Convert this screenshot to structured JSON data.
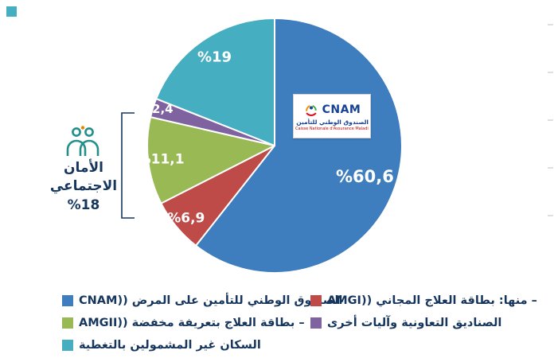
{
  "page": {
    "background": "#ffffff"
  },
  "chart_data": {
    "type": "pie",
    "title": "",
    "unit": "percent",
    "start_angle_deg": 90,
    "direction": "clockwise",
    "legend_position": "bottom",
    "slices": [
      {
        "name": "cnam",
        "label": "الصندوق الوطني للتأمين على المرض ((CNAM",
        "value": 60.6,
        "display": "%60,6",
        "color": "#3E7DBE",
        "label_r": 0.75,
        "label_size": 21
      },
      {
        "name": "amgi",
        "label": "– منها: بطاقة العلاج المجاني ((AMGI",
        "value": 6.9,
        "display": "%6,9",
        "color": "#BE4B48",
        "label_r": 0.9,
        "label_size": 17
      },
      {
        "name": "amgii",
        "label": "– بطاقة العلاج بتعريفة مخفضة ((AMGII",
        "value": 11.1,
        "display": "%11,1",
        "color": "#98B954",
        "label_r": 0.9,
        "label_size": 17
      },
      {
        "name": "mutuelles",
        "label": "الصناديق التعاونية وآليات أخرى",
        "value": 2.4,
        "display": "%2,4",
        "color": "#7F63A0",
        "label_r": 0.97,
        "label_size": 15
      },
      {
        "name": "non-couverts",
        "label": "السكان غير المشمولين بالتغطية",
        "value": 19.0,
        "display": "%19",
        "color": "#45AEC1",
        "label_r": 0.84,
        "label_size": 18
      }
    ]
  },
  "annotation": {
    "line1": "الأمان",
    "line2": "الاجتماعي",
    "value": "%18",
    "icon": "family-icon"
  },
  "logo": {
    "acronym": "CNAM",
    "arabic_name": "الصندوق الوطني للتأمين على المرض",
    "french_name": "Caisse Nationale d'Assurance Maladie",
    "brand_blue": "#164194"
  },
  "colors": {
    "legend_text": "#17365D",
    "slice_label_text": "#ffffff",
    "bracket": "#17365D",
    "icon_teal": "#238F8A"
  }
}
